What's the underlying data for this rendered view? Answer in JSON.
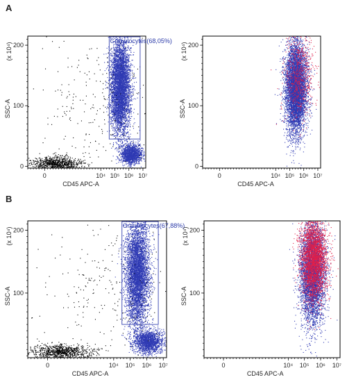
{
  "panels": [
    {
      "letter": "A"
    },
    {
      "letter": "B"
    }
  ],
  "chart_data": [
    {
      "type": "scatter",
      "panel": "A",
      "title": "",
      "xlabel": "CD45 APC-A",
      "ylabel": "SSC-A",
      "y_multiplier_label": "(x 10⁴)",
      "x_ticks": [
        {
          "value": 0,
          "label": "0"
        },
        {
          "value": 4,
          "label": "10⁴"
        },
        {
          "value": 5,
          "label": "10⁵"
        },
        {
          "value": 6,
          "label": "10⁶"
        },
        {
          "value": 7,
          "label": "10⁷"
        }
      ],
      "y_ticks": [
        {
          "value": 0,
          "label": "0"
        },
        {
          "value": 100,
          "label": "100"
        },
        {
          "value": 200,
          "label": "200"
        }
      ],
      "xlim": [
        -1.2,
        7.2
      ],
      "ylim": [
        -3,
        215
      ],
      "gate": {
        "label": "Granulocytes(68,05%)",
        "x": [
          4.6,
          6.8
        ],
        "y": [
          45,
          215
        ]
      },
      "populations": [
        {
          "name": "",
          "color": "#000000",
          "cx": 0.8,
          "cy": 4,
          "sx": 0.9,
          "sy": 6,
          "count": 900
        },
        {
          "name": "",
          "color": "#2f3ab3",
          "cx": 5.4,
          "cy": 130,
          "sx": 0.35,
          "sy": 40,
          "count": 5000
        },
        {
          "name": "",
          "color": "#2f3ab3",
          "cx": 6.2,
          "cy": 20,
          "sx": 0.35,
          "sy": 8,
          "count": 1500
        },
        {
          "name": "",
          "color": "#000000",
          "cx": 3.5,
          "cy": 100,
          "sx": 2.3,
          "sy": 60,
          "count": 260
        }
      ]
    },
    {
      "type": "scatter",
      "panel": "A",
      "title": "",
      "xlabel": "CD45 APC-A",
      "ylabel": "SSC-A",
      "y_multiplier_label": "(x 10⁴)",
      "x_ticks": [
        {
          "value": 0,
          "label": "0"
        },
        {
          "value": 4,
          "label": "10⁴"
        },
        {
          "value": 5,
          "label": "10⁵"
        },
        {
          "value": 6,
          "label": "10⁶"
        },
        {
          "value": 7,
          "label": "10⁷"
        }
      ],
      "y_ticks": [
        {
          "value": 0,
          "label": "0"
        },
        {
          "value": 100,
          "label": "100"
        },
        {
          "value": 200,
          "label": "200"
        }
      ],
      "xlim": [
        -1.2,
        7.2
      ],
      "ylim": [
        -3,
        215
      ],
      "gate": null,
      "populations": [
        {
          "name": "",
          "color": "#2f3ab3",
          "cx": 5.45,
          "cy": 130,
          "sx": 0.38,
          "sy": 38,
          "count": 6000
        },
        {
          "name": "",
          "color": "#e0204a",
          "cx": 5.7,
          "cy": 150,
          "sx": 0.55,
          "sy": 35,
          "count": 650
        }
      ]
    },
    {
      "type": "scatter",
      "panel": "B",
      "title": "",
      "xlabel": "CD45 APC-A",
      "ylabel": "SSC-A",
      "y_multiplier_label": "(x 10⁴)",
      "x_ticks": [
        {
          "value": 0,
          "label": "0"
        },
        {
          "value": 4,
          "label": "10⁴"
        },
        {
          "value": 5,
          "label": "10⁵"
        },
        {
          "value": 6,
          "label": "10⁶"
        },
        {
          "value": 7,
          "label": "10⁷"
        }
      ],
      "y_ticks": [
        {
          "value": 100,
          "label": "100"
        },
        {
          "value": 200,
          "label": "200"
        }
      ],
      "xlim": [
        -1.2,
        7.2
      ],
      "ylim": [
        -3,
        215
      ],
      "gate": {
        "label": "Granulocytes(67,88%)",
        "x": [
          4.5,
          6.7
        ],
        "y": [
          50,
          215
        ]
      },
      "populations": [
        {
          "name": "",
          "color": "#000000",
          "cx": 0.8,
          "cy": 6,
          "sx": 0.9,
          "sy": 6,
          "count": 900
        },
        {
          "name": "",
          "color": "#2f3ab3",
          "cx": 5.45,
          "cy": 130,
          "sx": 0.35,
          "sy": 42,
          "count": 5000
        },
        {
          "name": "",
          "color": "#2f3ab3",
          "cx": 6.1,
          "cy": 22,
          "sx": 0.45,
          "sy": 9,
          "count": 1600
        },
        {
          "name": "",
          "color": "#000000",
          "cx": 3.5,
          "cy": 100,
          "sx": 2.3,
          "sy": 60,
          "count": 260
        }
      ]
    },
    {
      "type": "scatter",
      "panel": "B",
      "title": "",
      "xlabel": "CD45 APC-A",
      "ylabel": "SSC-A",
      "y_multiplier_label": "(x 10⁴)",
      "x_ticks": [
        {
          "value": 0,
          "label": "0"
        },
        {
          "value": 4,
          "label": "10⁴"
        },
        {
          "value": 5,
          "label": "10⁵"
        },
        {
          "value": 6,
          "label": "10⁶"
        },
        {
          "value": 7,
          "label": "10⁷"
        }
      ],
      "y_ticks": [
        {
          "value": 100,
          "label": "100"
        },
        {
          "value": 200,
          "label": "200"
        }
      ],
      "xlim": [
        -1.2,
        7.2
      ],
      "ylim": [
        -3,
        215
      ],
      "gate": null,
      "populations": [
        {
          "name": "",
          "color": "#2f3ab3",
          "cx": 5.5,
          "cy": 130,
          "sx": 0.38,
          "sy": 40,
          "count": 5000
        },
        {
          "name": "",
          "color": "#e0204a",
          "cx": 5.6,
          "cy": 155,
          "sx": 0.4,
          "sy": 32,
          "count": 3000
        }
      ]
    }
  ]
}
